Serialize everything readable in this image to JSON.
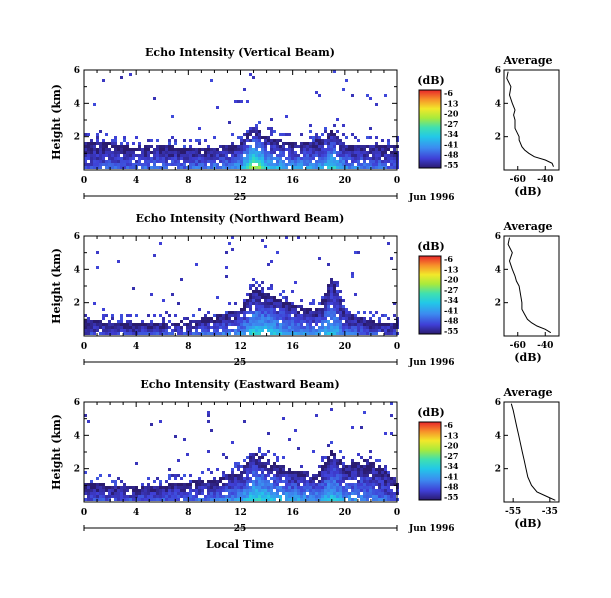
{
  "chart_data": [
    {
      "type": "heatmap",
      "title": "Echo Intensity (Vertical Beam)",
      "ylabel": "Height (km)",
      "xlabel": "",
      "x_ticks": [
        "0",
        "4",
        "8",
        "12",
        "16",
        "20",
        "0"
      ],
      "xlim": [
        0,
        24
      ],
      "y_ticks": [
        "2",
        "4",
        "6"
      ],
      "ylim": [
        0,
        6
      ],
      "date_day": "25",
      "date_label": "Jun 1996",
      "colorbar": {
        "label": "(dB)",
        "ticks": [
          "-6",
          "-13",
          "-20",
          "-27",
          "-34",
          "-41",
          "-48",
          "-55"
        ]
      },
      "field": {
        "description_units": "dB",
        "columns_hours": [
          0,
          2,
          4,
          6,
          8,
          10,
          12,
          13,
          14,
          16,
          18,
          19,
          20,
          22,
          24
        ],
        "echo_top_km": [
          1.7,
          1.6,
          1.4,
          1.5,
          1.3,
          1.4,
          1.6,
          2.6,
          2.0,
          1.6,
          1.8,
          2.4,
          1.6,
          1.4,
          1.5
        ],
        "peak_dB": [
          -45,
          -44,
          -43,
          -42,
          -42,
          -40,
          -36,
          -13,
          -30,
          -36,
          -36,
          -27,
          -38,
          -40,
          -44
        ]
      },
      "profile": {
        "title": "Average",
        "xlabel": "(dB)",
        "x_ticks": [
          "-60",
          "-40"
        ],
        "xlim": [
          -70,
          -30
        ],
        "ylim": [
          0,
          6
        ],
        "y_ticks": [
          "2",
          "4",
          "6"
        ],
        "height_km": [
          0.2,
          0.4,
          0.6,
          0.8,
          1.0,
          1.2,
          1.4,
          1.6,
          1.8,
          2.0,
          2.5,
          3.0,
          3.3,
          3.6,
          4.0,
          4.5,
          5.0,
          5.5,
          5.9
        ],
        "dB": [
          -34,
          -35,
          -40,
          -48,
          -52,
          -55,
          -57,
          -58,
          -59,
          -59,
          -62,
          -62,
          -63,
          -62,
          -64,
          -66,
          -65,
          -68,
          -67
        ]
      }
    },
    {
      "type": "heatmap",
      "title": "Echo Intensity (Northward Beam)",
      "ylabel": "Height (km)",
      "xlabel": "",
      "x_ticks": [
        "0",
        "4",
        "8",
        "12",
        "16",
        "20",
        "0"
      ],
      "xlim": [
        0,
        24
      ],
      "y_ticks": [
        "2",
        "4",
        "6"
      ],
      "ylim": [
        0,
        6
      ],
      "date_day": "25",
      "date_label": "Jun 1996",
      "colorbar": {
        "label": "(dB)",
        "ticks": [
          "-6",
          "-13",
          "-20",
          "-27",
          "-34",
          "-41",
          "-48",
          "-55"
        ]
      },
      "field": {
        "description_units": "dB",
        "columns_hours": [
          0,
          2,
          4,
          6,
          8,
          10,
          12,
          13,
          14,
          16,
          18,
          19,
          20,
          22,
          24
        ],
        "echo_top_km": [
          1.0,
          0.8,
          0.7,
          0.8,
          0.9,
          1.2,
          1.6,
          2.8,
          2.6,
          1.9,
          1.6,
          3.6,
          1.4,
          0.9,
          0.8
        ],
        "peak_dB": [
          -47,
          -46,
          -45,
          -44,
          -43,
          -41,
          -38,
          -28,
          -30,
          -36,
          -38,
          -32,
          -40,
          -44,
          -46
        ]
      },
      "profile": {
        "title": "Average",
        "xlabel": "(dB)",
        "x_ticks": [
          "-60",
          "-40"
        ],
        "xlim": [
          -70,
          -30
        ],
        "ylim": [
          0,
          6
        ],
        "y_ticks": [
          "2",
          "4",
          "6"
        ],
        "height_km": [
          0.2,
          0.4,
          0.6,
          0.8,
          1.0,
          1.3,
          1.6,
          2.0,
          2.5,
          3.0,
          3.3,
          3.6,
          4.0,
          4.5,
          5.0,
          5.5,
          5.9
        ],
        "dB": [
          -36,
          -40,
          -46,
          -50,
          -53,
          -55,
          -57,
          -57,
          -58,
          -59,
          -61,
          -62,
          -64,
          -66,
          -64,
          -67,
          -66
        ]
      }
    },
    {
      "type": "heatmap",
      "title": "Echo Intensity (Eastward Beam)",
      "ylabel": "Height (km)",
      "xlabel": "Local Time",
      "x_ticks": [
        "0",
        "4",
        "8",
        "12",
        "16",
        "20",
        "0"
      ],
      "xlim": [
        0,
        24
      ],
      "y_ticks": [
        "2",
        "4",
        "6"
      ],
      "ylim": [
        0,
        6
      ],
      "date_day": "25",
      "date_label": "Jun 1996",
      "colorbar": {
        "label": "(dB)",
        "ticks": [
          "-6",
          "-13",
          "-20",
          "-27",
          "-34",
          "-41",
          "-48",
          "-55"
        ]
      },
      "field": {
        "description_units": "dB",
        "columns_hours": [
          0,
          2,
          4,
          6,
          8,
          10,
          12,
          13,
          14,
          16,
          18,
          19,
          20,
          22,
          24
        ],
        "echo_top_km": [
          1.2,
          1.0,
          0.9,
          1.0,
          1.2,
          1.4,
          1.8,
          3.0,
          2.6,
          1.9,
          1.7,
          3.2,
          2.2,
          2.6,
          1.2
        ],
        "peak_dB": [
          -46,
          -45,
          -44,
          -43,
          -42,
          -40,
          -37,
          -28,
          -30,
          -35,
          -37,
          -31,
          -38,
          -40,
          -45
        ]
      },
      "profile": {
        "title": "Average",
        "xlabel": "(dB)",
        "x_ticks": [
          "-55",
          "-35"
        ],
        "xlim": [
          -60,
          -30
        ],
        "ylim": [
          0,
          6
        ],
        "y_ticks": [
          "2",
          "4",
          "6"
        ],
        "height_km": [
          0.1,
          0.3,
          0.6,
          1.0,
          1.5,
          2.0,
          2.5,
          3.0,
          3.5,
          4.0,
          4.5,
          5.0,
          5.5,
          5.9
        ],
        "dB": [
          -32,
          -36,
          -42,
          -45,
          -47,
          -48,
          -49,
          -50,
          -51,
          -52,
          -53,
          -54,
          -55,
          -56
        ]
      }
    }
  ]
}
